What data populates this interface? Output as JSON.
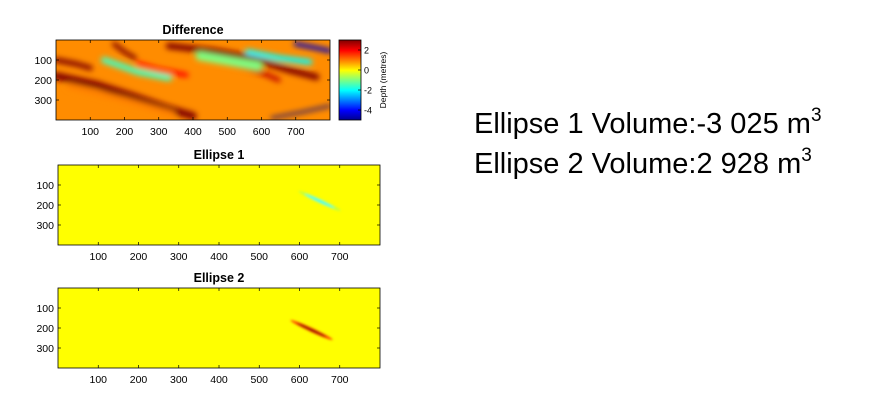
{
  "chart_data": [
    {
      "type": "heatmap",
      "title": "Difference",
      "xlabel": "",
      "ylabel": "",
      "x_ticks": [
        100,
        200,
        300,
        400,
        500,
        600,
        700
      ],
      "y_ticks": [
        100,
        200,
        300
      ],
      "xlim": [
        0,
        800
      ],
      "ylim": [
        400,
        0
      ],
      "colormap": "jet",
      "colorbar": {
        "label": "Depth (metres)",
        "ticks": [
          2,
          0,
          -2,
          -4
        ],
        "range": [
          -5,
          3
        ]
      },
      "bands": [
        {
          "value": 3,
          "points": [
            [
              0,
              180
            ],
            [
              120,
              225
            ],
            [
              220,
              280
            ],
            [
              320,
              340
            ],
            [
              400,
              380
            ]
          ],
          "width": 38
        },
        {
          "value": 3,
          "points": [
            [
              0,
              100
            ],
            [
              60,
              120
            ],
            [
              100,
              140
            ]
          ],
          "width": 25
        },
        {
          "value": 3,
          "points": [
            [
              170,
              20
            ],
            [
              200,
              60
            ],
            [
              230,
              90
            ]
          ],
          "width": 22
        },
        {
          "value": 3,
          "points": [
            [
              330,
              30
            ],
            [
              460,
              55
            ],
            [
              560,
              85
            ],
            [
              680,
              150
            ],
            [
              760,
              185
            ]
          ],
          "width": 32
        },
        {
          "value": 2.5,
          "points": [
            [
              510,
              120
            ],
            [
              560,
              140
            ],
            [
              610,
              170
            ],
            [
              650,
              200
            ]
          ],
          "width": 22
        },
        {
          "value": 2,
          "points": [
            [
              240,
              120
            ],
            [
              300,
              150
            ],
            [
              380,
              175
            ]
          ],
          "width": 24
        },
        {
          "value": 1,
          "points": [
            [
              40,
              230
            ],
            [
              200,
              300
            ],
            [
              340,
              370
            ]
          ],
          "width": 30
        },
        {
          "value": -1.5,
          "points": [
            [
              140,
              100
            ],
            [
              240,
              160
            ],
            [
              330,
              190
            ]
          ],
          "width": 30
        },
        {
          "value": -1,
          "points": [
            [
              420,
              80
            ],
            [
              520,
              110
            ],
            [
              590,
              130
            ]
          ],
          "width": 45
        },
        {
          "value": -2,
          "points": [
            [
              560,
              60
            ],
            [
              650,
              90
            ],
            [
              740,
              110
            ]
          ],
          "width": 28
        },
        {
          "value": -4.5,
          "points": [
            [
              700,
              20
            ],
            [
              760,
              40
            ],
            [
              800,
              55
            ]
          ],
          "width": 22
        },
        {
          "value": -5,
          "points": [
            [
              630,
              390
            ],
            [
              720,
              360
            ],
            [
              800,
              330
            ]
          ],
          "width": 12
        }
      ]
    },
    {
      "type": "heatmap",
      "title": "Ellipse 1",
      "x_ticks": [
        100,
        200,
        300,
        400,
        500,
        600,
        700
      ],
      "y_ticks": [
        100,
        200,
        300
      ],
      "xlim": [
        0,
        800
      ],
      "ylim": [
        400,
        0
      ],
      "background_value": 0,
      "ellipse": {
        "center": [
          650,
          180
        ],
        "semi_axes": [
          58,
          11
        ],
        "angle_deg": 25,
        "value": -2
      }
    },
    {
      "type": "heatmap",
      "title": "Ellipse 2",
      "x_ticks": [
        100,
        200,
        300,
        400,
        500,
        600,
        700
      ],
      "y_ticks": [
        100,
        200,
        300
      ],
      "xlim": [
        0,
        800
      ],
      "ylim": [
        400,
        0
      ],
      "background_value": 0,
      "ellipse": {
        "center": [
          630,
          210
        ],
        "semi_axes": [
          58,
          10
        ],
        "angle_deg": 25,
        "value": 3
      }
    }
  ],
  "volumes": [
    {
      "label": "Ellipse 1 Volume:",
      "value": "-3 025",
      "unit": "m",
      "exponent": "3"
    },
    {
      "label": "Ellipse 2 Volume:",
      "value": "2 928",
      "unit": "m",
      "exponent": "3"
    }
  ]
}
